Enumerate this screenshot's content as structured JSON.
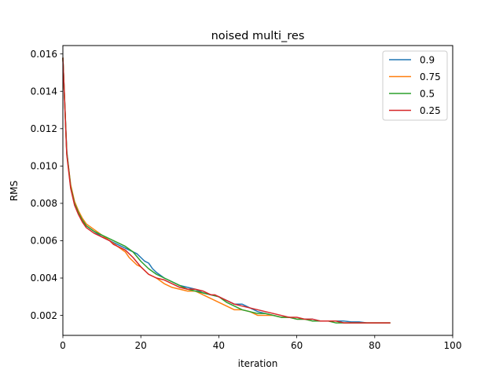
{
  "chart_data": {
    "type": "line",
    "title": "noised multi_res",
    "xlabel": "iteration",
    "ylabel": "RMS",
    "xlim": [
      0,
      100
    ],
    "ylim": [
      0.00093,
      0.01645
    ],
    "xticks": [
      0,
      20,
      40,
      60,
      80,
      100
    ],
    "yticks": [
      0.002,
      0.004,
      0.006,
      0.008,
      0.01,
      0.012,
      0.014,
      0.016
    ],
    "xtick_labels": [
      "0",
      "20",
      "40",
      "60",
      "80",
      "100"
    ],
    "ytick_labels": [
      "0.002",
      "0.004",
      "0.006",
      "0.008",
      "0.010",
      "0.012",
      "0.014",
      "0.016"
    ],
    "grid": false,
    "legend_position": "top-right",
    "series": [
      {
        "name": "0.9",
        "color": "#1f77b4",
        "x": [
          0,
          1,
          2,
          3,
          4,
          5,
          6,
          8,
          10,
          12,
          14,
          16,
          18,
          19,
          20,
          21,
          22,
          23,
          24,
          26,
          28,
          30,
          32,
          34,
          36,
          38,
          40,
          42,
          44,
          46,
          47,
          48,
          50,
          52,
          54,
          56,
          58,
          60,
          62,
          64,
          66,
          68,
          70,
          72,
          74,
          76,
          78,
          80,
          82,
          84
        ],
        "y": [
          0.0158,
          0.0108,
          0.0089,
          0.008,
          0.0075,
          0.0071,
          0.0068,
          0.0065,
          0.0062,
          0.006,
          0.0058,
          0.0056,
          0.0054,
          0.0053,
          0.0051,
          0.0049,
          0.0048,
          0.0045,
          0.0043,
          0.004,
          0.0038,
          0.0036,
          0.0035,
          0.0034,
          0.0032,
          0.0031,
          0.003,
          0.0028,
          0.0026,
          0.0026,
          0.0025,
          0.0024,
          0.0022,
          0.0021,
          0.002,
          0.0019,
          0.0019,
          0.0018,
          0.0018,
          0.0018,
          0.0017,
          0.0017,
          0.0017,
          0.0017,
          0.00165,
          0.00165,
          0.0016,
          0.0016,
          0.0016,
          0.0016
        ]
      },
      {
        "name": "0.75",
        "color": "#ff7f0e",
        "x": [
          0,
          1,
          2,
          3,
          4,
          5,
          6,
          8,
          10,
          12,
          14,
          16,
          17,
          18,
          19,
          20,
          21,
          22,
          24,
          26,
          28,
          30,
          32,
          34,
          36,
          38,
          40,
          42,
          44,
          46,
          48,
          50,
          52,
          54,
          56,
          58,
          60,
          62,
          64,
          66,
          68,
          70,
          72,
          74,
          76,
          78,
          80,
          82,
          84
        ],
        "y": [
          0.0158,
          0.0107,
          0.009,
          0.0081,
          0.0076,
          0.0072,
          0.0069,
          0.0066,
          0.0063,
          0.006,
          0.0057,
          0.0054,
          0.0051,
          0.0049,
          0.0047,
          0.0046,
          0.0044,
          0.0042,
          0.004,
          0.0037,
          0.0035,
          0.0034,
          0.0033,
          0.0033,
          0.0031,
          0.0029,
          0.0027,
          0.0025,
          0.0023,
          0.0023,
          0.0022,
          0.002,
          0.002,
          0.002,
          0.0019,
          0.0019,
          0.0018,
          0.0018,
          0.0017,
          0.0017,
          0.0017,
          0.0017,
          0.0016,
          0.0016,
          0.0016,
          0.0016,
          0.0016,
          0.0016,
          0.0016
        ]
      },
      {
        "name": "0.5",
        "color": "#2ca02c",
        "x": [
          0,
          1,
          2,
          3,
          4,
          5,
          6,
          8,
          10,
          12,
          14,
          16,
          18,
          20,
          22,
          24,
          26,
          28,
          30,
          32,
          34,
          36,
          38,
          40,
          42,
          44,
          46,
          48,
          50,
          52,
          54,
          56,
          58,
          60,
          62,
          64,
          66,
          68,
          70,
          72,
          74,
          76,
          78,
          80,
          82,
          84
        ],
        "y": [
          0.0158,
          0.0107,
          0.0089,
          0.008,
          0.0075,
          0.0071,
          0.0068,
          0.0065,
          0.0063,
          0.0061,
          0.0059,
          0.0057,
          0.0054,
          0.0049,
          0.0045,
          0.0042,
          0.004,
          0.0038,
          0.0036,
          0.0034,
          0.0033,
          0.0032,
          0.0031,
          0.003,
          0.0027,
          0.0025,
          0.0023,
          0.0022,
          0.0021,
          0.0021,
          0.002,
          0.0019,
          0.0019,
          0.0018,
          0.0018,
          0.0017,
          0.0017,
          0.0017,
          0.0016,
          0.0016,
          0.0016,
          0.0016,
          0.0016,
          0.0016,
          0.0016,
          0.0016
        ]
      },
      {
        "name": "0.25",
        "color": "#d62728",
        "x": [
          0,
          1,
          2,
          3,
          4,
          5,
          6,
          8,
          10,
          12,
          13,
          14,
          16,
          18,
          20,
          22,
          24,
          26,
          28,
          30,
          32,
          34,
          36,
          38,
          39,
          40,
          42,
          44,
          46,
          48,
          50,
          52,
          54,
          56,
          58,
          60,
          62,
          64,
          66,
          68,
          70,
          72,
          74,
          76,
          78,
          80,
          82,
          84
        ],
        "y": [
          0.0158,
          0.0106,
          0.0088,
          0.0079,
          0.0074,
          0.007,
          0.0067,
          0.0064,
          0.0062,
          0.006,
          0.0058,
          0.0057,
          0.0055,
          0.0051,
          0.0046,
          0.0042,
          0.004,
          0.0039,
          0.0037,
          0.0035,
          0.0034,
          0.0034,
          0.0033,
          0.0031,
          0.0031,
          0.003,
          0.0028,
          0.0026,
          0.0025,
          0.0024,
          0.0023,
          0.0022,
          0.0021,
          0.002,
          0.0019,
          0.0019,
          0.0018,
          0.0018,
          0.0017,
          0.0017,
          0.0017,
          0.0016,
          0.0016,
          0.0016,
          0.0016,
          0.0016,
          0.0016,
          0.0016
        ]
      }
    ]
  }
}
